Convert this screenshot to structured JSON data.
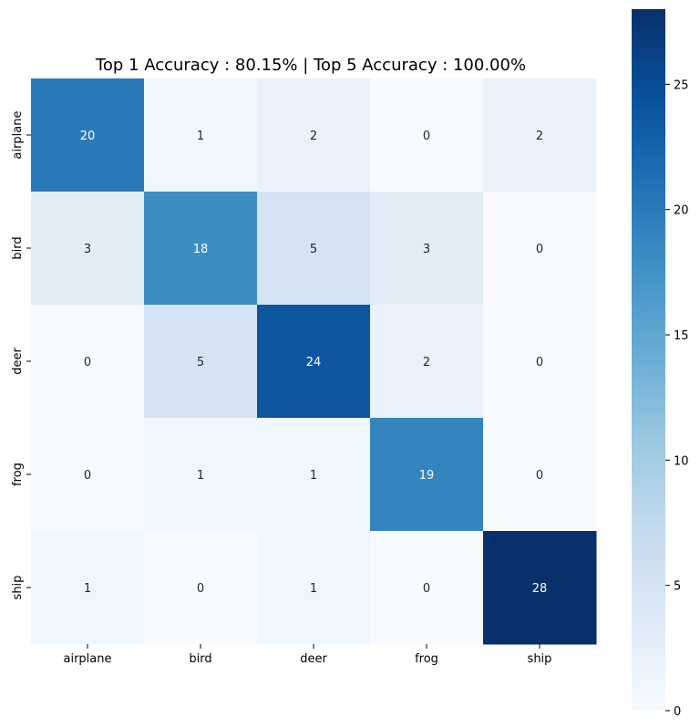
{
  "chart_data": {
    "type": "heatmap",
    "title": "Top 1 Accuracy : 80.15% | Top 5 Accuracy : 100.00%",
    "xlabel": "",
    "ylabel": "",
    "x_categories": [
      "airplane",
      "bird",
      "deer",
      "frog",
      "ship"
    ],
    "y_categories": [
      "airplane",
      "bird",
      "deer",
      "frog",
      "ship"
    ],
    "values": [
      [
        20,
        1,
        2,
        0,
        2
      ],
      [
        3,
        18,
        5,
        3,
        0
      ],
      [
        0,
        5,
        24,
        2,
        0
      ],
      [
        0,
        1,
        1,
        19,
        0
      ],
      [
        1,
        0,
        1,
        0,
        28
      ]
    ],
    "colormap": "Blues",
    "color_range": [
      0,
      28
    ],
    "colorbar_ticks": [
      0,
      5,
      10,
      15,
      20,
      25
    ],
    "colorbar_position": "right",
    "annotations": true,
    "grid": false
  }
}
